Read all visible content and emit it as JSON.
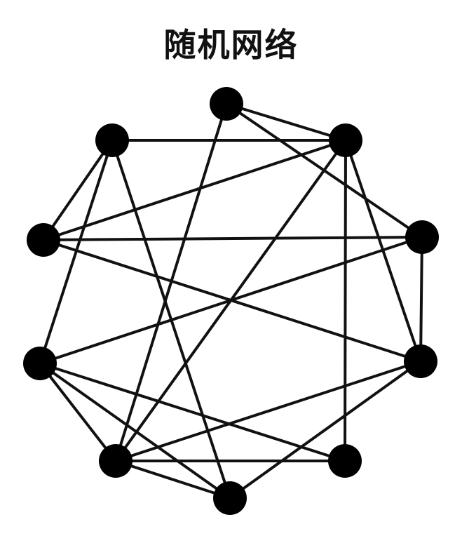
{
  "title": "随机网络",
  "graph": {
    "node_color": "#000000",
    "edge_color": "#111111",
    "nodes": [
      {
        "id": "n-top"
      },
      {
        "id": "n-upper-left"
      },
      {
        "id": "n-upper-right"
      },
      {
        "id": "n-mid-left"
      },
      {
        "id": "n-mid-right"
      },
      {
        "id": "n-lower-left"
      },
      {
        "id": "n-lower-right"
      },
      {
        "id": "n-bottom-left"
      },
      {
        "id": "n-bottom-right"
      },
      {
        "id": "n-bottom"
      }
    ],
    "edges": [
      [
        "n-upper-left",
        "n-upper-right"
      ],
      [
        "n-upper-left",
        "n-mid-left"
      ],
      [
        "n-upper-left",
        "n-lower-left"
      ],
      [
        "n-upper-left",
        "n-bottom"
      ],
      [
        "n-top",
        "n-upper-right"
      ],
      [
        "n-top",
        "n-bottom-left"
      ],
      [
        "n-top",
        "n-mid-right"
      ],
      [
        "n-upper-right",
        "n-mid-left"
      ],
      [
        "n-upper-right",
        "n-bottom-right"
      ],
      [
        "n-upper-right",
        "n-lower-right"
      ],
      [
        "n-upper-right",
        "n-bottom-left"
      ],
      [
        "n-mid-left",
        "n-mid-right"
      ],
      [
        "n-mid-left",
        "n-lower-right"
      ],
      [
        "n-mid-right",
        "n-lower-right"
      ],
      [
        "n-mid-right",
        "n-lower-left"
      ],
      [
        "n-lower-left",
        "n-bottom-right"
      ],
      [
        "n-lower-left",
        "n-bottom-left"
      ],
      [
        "n-lower-left",
        "n-bottom"
      ],
      [
        "n-lower-right",
        "n-bottom-left"
      ],
      [
        "n-lower-right",
        "n-bottom"
      ],
      [
        "n-bottom-left",
        "n-bottom-right"
      ],
      [
        "n-bottom-left",
        "n-bottom"
      ]
    ]
  }
}
